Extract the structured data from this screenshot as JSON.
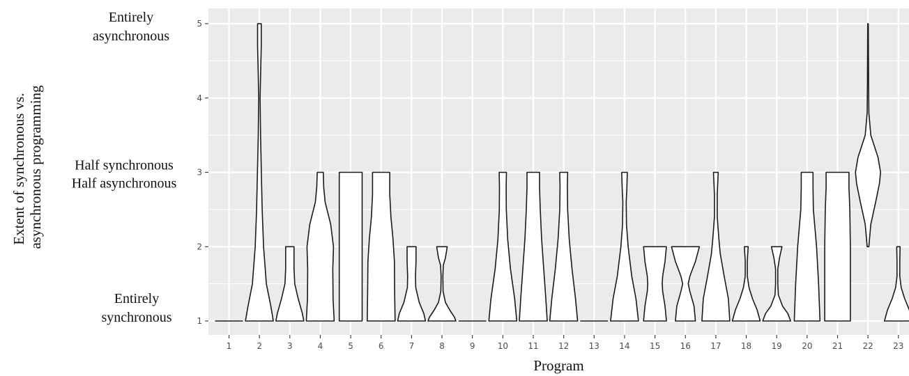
{
  "chart_data": {
    "type": "violin",
    "title": "",
    "xlabel": "Program",
    "ylabel": "Extent of synchronous vs. asynchronous programming",
    "ylabel_lines": [
      "Extent of synchronous vs.",
      "asynchronous programming"
    ],
    "ylim": [
      0.75,
      5.2
    ],
    "y_ticks": [
      1,
      2,
      3,
      4,
      5
    ],
    "y_tick_labels": [
      "1",
      "2",
      "3",
      "4",
      "5"
    ],
    "y_category_labels": [
      {
        "y": 5,
        "lines": [
          "Entirely",
          "asynchronous"
        ]
      },
      {
        "y": 3,
        "lines": [
          "Half  synchronous",
          "Half asynchronous"
        ]
      },
      {
        "y": 1,
        "lines": [
          "Entirely",
          "synchronous"
        ]
      }
    ],
    "categories": [
      "1",
      "2",
      "3",
      "4",
      "5",
      "6",
      "7",
      "8",
      "9",
      "10",
      "11",
      "12",
      "13",
      "14",
      "15",
      "16",
      "17",
      "18",
      "19",
      "20",
      "21",
      "22",
      "23"
    ],
    "grid": true,
    "colors": {
      "panel": "#ebebeb",
      "grid": "#ffffff",
      "violin_fill": "#ffffff",
      "violin_stroke": "#1a1a1a"
    },
    "series": [
      {
        "program": "1",
        "min": 1,
        "max": 1,
        "profile": [
          [
            1,
            1
          ]
        ]
      },
      {
        "program": "2",
        "min": 1,
        "max": 5,
        "profile": [
          [
            1,
            1
          ],
          [
            1.2,
            0.82
          ],
          [
            1.5,
            0.5
          ],
          [
            2,
            0.3
          ],
          [
            2.5,
            0.2
          ],
          [
            3,
            0.14
          ],
          [
            3.5,
            0.08
          ],
          [
            4,
            0.05
          ],
          [
            4.3,
            0.08
          ],
          [
            4.7,
            0.13
          ],
          [
            5,
            0.13
          ]
        ]
      },
      {
        "program": "3",
        "min": 1,
        "max": 2,
        "profile": [
          [
            1,
            1
          ],
          [
            1.1,
            0.9
          ],
          [
            1.3,
            0.6
          ],
          [
            1.5,
            0.35
          ],
          [
            1.7,
            0.3
          ],
          [
            1.9,
            0.3
          ],
          [
            2,
            0.3
          ]
        ]
      },
      {
        "program": "4",
        "min": 1,
        "max": 3,
        "profile": [
          [
            1,
            1
          ],
          [
            1.3,
            0.92
          ],
          [
            1.7,
            0.9
          ],
          [
            2,
            0.95
          ],
          [
            2.3,
            0.75
          ],
          [
            2.6,
            0.35
          ],
          [
            2.8,
            0.25
          ],
          [
            3,
            0.22
          ]
        ]
      },
      {
        "program": "5",
        "min": 1,
        "max": 3,
        "profile": [
          [
            1,
            0.82
          ],
          [
            1.5,
            0.82
          ],
          [
            2,
            0.82
          ],
          [
            2.5,
            0.82
          ],
          [
            3,
            0.82
          ]
        ]
      },
      {
        "program": "6",
        "min": 1,
        "max": 3,
        "profile": [
          [
            1,
            1
          ],
          [
            1.4,
            0.97
          ],
          [
            1.8,
            0.95
          ],
          [
            2.1,
            0.85
          ],
          [
            2.4,
            0.7
          ],
          [
            2.7,
            0.62
          ],
          [
            3,
            0.62
          ]
        ]
      },
      {
        "program": "7",
        "min": 1,
        "max": 2,
        "profile": [
          [
            1,
            1
          ],
          [
            1.1,
            0.88
          ],
          [
            1.25,
            0.55
          ],
          [
            1.45,
            0.3
          ],
          [
            1.6,
            0.28
          ],
          [
            1.8,
            0.32
          ],
          [
            2,
            0.32
          ]
        ]
      },
      {
        "program": "8",
        "min": 1,
        "max": 2,
        "profile": [
          [
            1,
            1
          ],
          [
            1.05,
            0.9
          ],
          [
            1.15,
            0.55
          ],
          [
            1.25,
            0.25
          ],
          [
            1.4,
            0.08
          ],
          [
            1.6,
            0.06
          ],
          [
            1.75,
            0.1
          ],
          [
            1.85,
            0.25
          ],
          [
            2,
            0.38
          ]
        ]
      },
      {
        "program": "9",
        "min": 1,
        "max": 1,
        "profile": [
          [
            1,
            1
          ]
        ]
      },
      {
        "program": "10",
        "min": 1,
        "max": 3,
        "profile": [
          [
            1,
            1
          ],
          [
            1.3,
            0.85
          ],
          [
            1.7,
            0.55
          ],
          [
            2.1,
            0.35
          ],
          [
            2.5,
            0.25
          ],
          [
            2.8,
            0.24
          ],
          [
            3,
            0.26
          ]
        ]
      },
      {
        "program": "11",
        "min": 1,
        "max": 3,
        "profile": [
          [
            1,
            1
          ],
          [
            1.3,
            0.9
          ],
          [
            1.7,
            0.75
          ],
          [
            2.1,
            0.6
          ],
          [
            2.5,
            0.5
          ],
          [
            2.8,
            0.45
          ],
          [
            3,
            0.45
          ]
        ]
      },
      {
        "program": "12",
        "min": 1,
        "max": 3,
        "profile": [
          [
            1,
            1
          ],
          [
            1.3,
            0.85
          ],
          [
            1.7,
            0.6
          ],
          [
            2.1,
            0.4
          ],
          [
            2.5,
            0.28
          ],
          [
            2.8,
            0.26
          ],
          [
            3,
            0.28
          ]
        ]
      },
      {
        "program": "13",
        "min": 1,
        "max": 1,
        "profile": [
          [
            1,
            1
          ]
        ]
      },
      {
        "program": "14",
        "min": 1,
        "max": 3,
        "profile": [
          [
            1,
            1
          ],
          [
            1.3,
            0.82
          ],
          [
            1.6,
            0.52
          ],
          [
            2,
            0.26
          ],
          [
            2.3,
            0.14
          ],
          [
            2.6,
            0.12
          ],
          [
            2.8,
            0.17
          ],
          [
            3,
            0.2
          ]
        ]
      },
      {
        "program": "15",
        "min": 1,
        "max": 2,
        "profile": [
          [
            1,
            0.82
          ],
          [
            1.2,
            0.72
          ],
          [
            1.4,
            0.55
          ],
          [
            1.5,
            0.52
          ],
          [
            1.6,
            0.55
          ],
          [
            1.8,
            0.72
          ],
          [
            2,
            0.82
          ]
        ]
      },
      {
        "program": "16",
        "min": 1,
        "max": 2,
        "profile": [
          [
            1,
            0.72
          ],
          [
            1.2,
            0.62
          ],
          [
            1.4,
            0.32
          ],
          [
            1.5,
            0.2
          ],
          [
            1.6,
            0.32
          ],
          [
            1.8,
            0.72
          ],
          [
            2,
            1
          ]
        ]
      },
      {
        "program": "17",
        "min": 1,
        "max": 3,
        "profile": [
          [
            1,
            1
          ],
          [
            1.3,
            0.9
          ],
          [
            1.6,
            0.6
          ],
          [
            1.9,
            0.32
          ],
          [
            2.1,
            0.22
          ],
          [
            2.4,
            0.1
          ],
          [
            2.7,
            0.1
          ],
          [
            3,
            0.17
          ]
        ]
      },
      {
        "program": "18",
        "min": 1,
        "max": 2,
        "profile": [
          [
            1,
            1
          ],
          [
            1.15,
            0.78
          ],
          [
            1.3,
            0.45
          ],
          [
            1.45,
            0.2
          ],
          [
            1.6,
            0.08
          ],
          [
            1.8,
            0.07
          ],
          [
            2,
            0.14
          ]
        ]
      },
      {
        "program": "19",
        "min": 1,
        "max": 2,
        "profile": [
          [
            1,
            1
          ],
          [
            1.1,
            0.8
          ],
          [
            1.2,
            0.42
          ],
          [
            1.35,
            0.12
          ],
          [
            1.5,
            0.08
          ],
          [
            1.7,
            0.08
          ],
          [
            1.85,
            0.2
          ],
          [
            2,
            0.38
          ]
        ]
      },
      {
        "program": "20",
        "min": 1,
        "max": 3,
        "profile": [
          [
            1,
            0.92
          ],
          [
            1.5,
            0.82
          ],
          [
            2,
            0.68
          ],
          [
            2.5,
            0.45
          ],
          [
            2.8,
            0.42
          ],
          [
            3,
            0.42
          ]
        ]
      },
      {
        "program": "21",
        "min": 1,
        "max": 3,
        "profile": [
          [
            1,
            0.92
          ],
          [
            1.5,
            0.92
          ],
          [
            2,
            0.92
          ],
          [
            2.5,
            0.88
          ],
          [
            2.8,
            0.82
          ],
          [
            3,
            0.82
          ]
        ]
      },
      {
        "program": "22",
        "min": 2,
        "max": 5,
        "profile": [
          [
            2,
            0.06
          ],
          [
            2.3,
            0.2
          ],
          [
            2.6,
            0.55
          ],
          [
            2.85,
            0.82
          ],
          [
            3,
            0.9
          ],
          [
            3.2,
            0.72
          ],
          [
            3.5,
            0.2
          ],
          [
            3.8,
            0.06
          ],
          [
            4.2,
            0.04
          ],
          [
            4.6,
            0.03
          ],
          [
            5,
            0.02
          ]
        ]
      },
      {
        "program": "23",
        "min": 1,
        "max": 2,
        "profile": [
          [
            1,
            1
          ],
          [
            1.15,
            0.78
          ],
          [
            1.3,
            0.45
          ],
          [
            1.45,
            0.2
          ],
          [
            1.6,
            0.1
          ],
          [
            1.8,
            0.1
          ],
          [
            2,
            0.12
          ]
        ]
      }
    ]
  }
}
